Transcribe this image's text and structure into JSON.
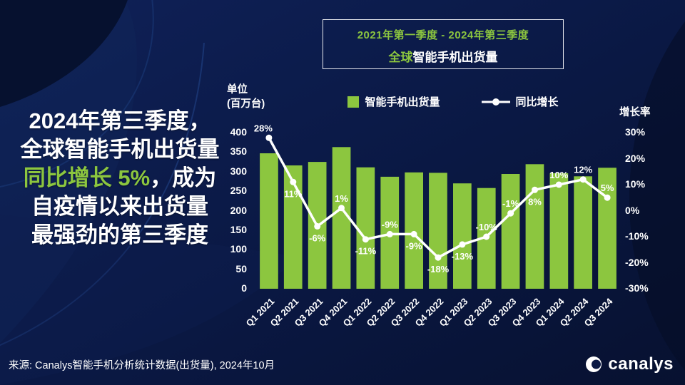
{
  "colors": {
    "green": "#8CC63F",
    "background": "#0A1843",
    "line": "#FFFFFF"
  },
  "title_box": {
    "line1": "2021年第一季度 - 2024年第三季度",
    "line2_highlight": "全球",
    "line2_rest": "智能手机出货量"
  },
  "headline": {
    "line1": "2024年第三季度，",
    "line2": "全球智能手机出货量",
    "line3_highlight": "同比增长 5%",
    "line3_rest": "，成为",
    "line4": "自疫情以来出货量",
    "line5": "最强劲的第三季度"
  },
  "axis": {
    "unit_line1": "单位",
    "unit_line2": "(百万台)",
    "right_title": "增长率"
  },
  "legend": {
    "bars": "智能手机出货量",
    "line": "同比增长"
  },
  "source": "来源: Canalys智能手机分析统计数据(出货量), 2024年10月",
  "logo_text": "canalys",
  "chart_data": {
    "type": "bar+line",
    "title": "全球智能手机出货量 2021Q1-2024Q3",
    "categories": [
      "Q1 2021",
      "Q2 2021",
      "Q3 2021",
      "Q4 2021",
      "Q1 2022",
      "Q2 2022",
      "Q3 2022",
      "Q4 2022",
      "Q1 2023",
      "Q2 2023",
      "Q3 2023",
      "Q4 2023",
      "Q1 2024",
      "Q2 2024",
      "Q3 2024"
    ],
    "series": [
      {
        "name": "智能手机出货量",
        "type": "bar",
        "unit": "百万台",
        "values": [
          347,
          316,
          325,
          363,
          311,
          287,
          298,
          297,
          270,
          258,
          294,
          319,
          296,
          288,
          310
        ]
      },
      {
        "name": "同比增长",
        "type": "line",
        "unit": "%",
        "values": [
          28,
          11,
          -6,
          1,
          -11,
          -9,
          -9,
          -18,
          -13,
          -10,
          -1,
          8,
          10,
          12,
          5
        ]
      }
    ],
    "left_axis": {
      "min": 0,
      "max": 400,
      "step": 50
    },
    "right_axis": {
      "min": -30,
      "max": 30,
      "step": 10,
      "suffix": "%"
    },
    "label_positions": [
      "above",
      "below",
      "below",
      "above",
      "below",
      "above",
      "below",
      "below",
      "below",
      "above",
      "above",
      "below",
      "above",
      "above",
      "above"
    ],
    "legend_position": "top",
    "grid": false
  }
}
